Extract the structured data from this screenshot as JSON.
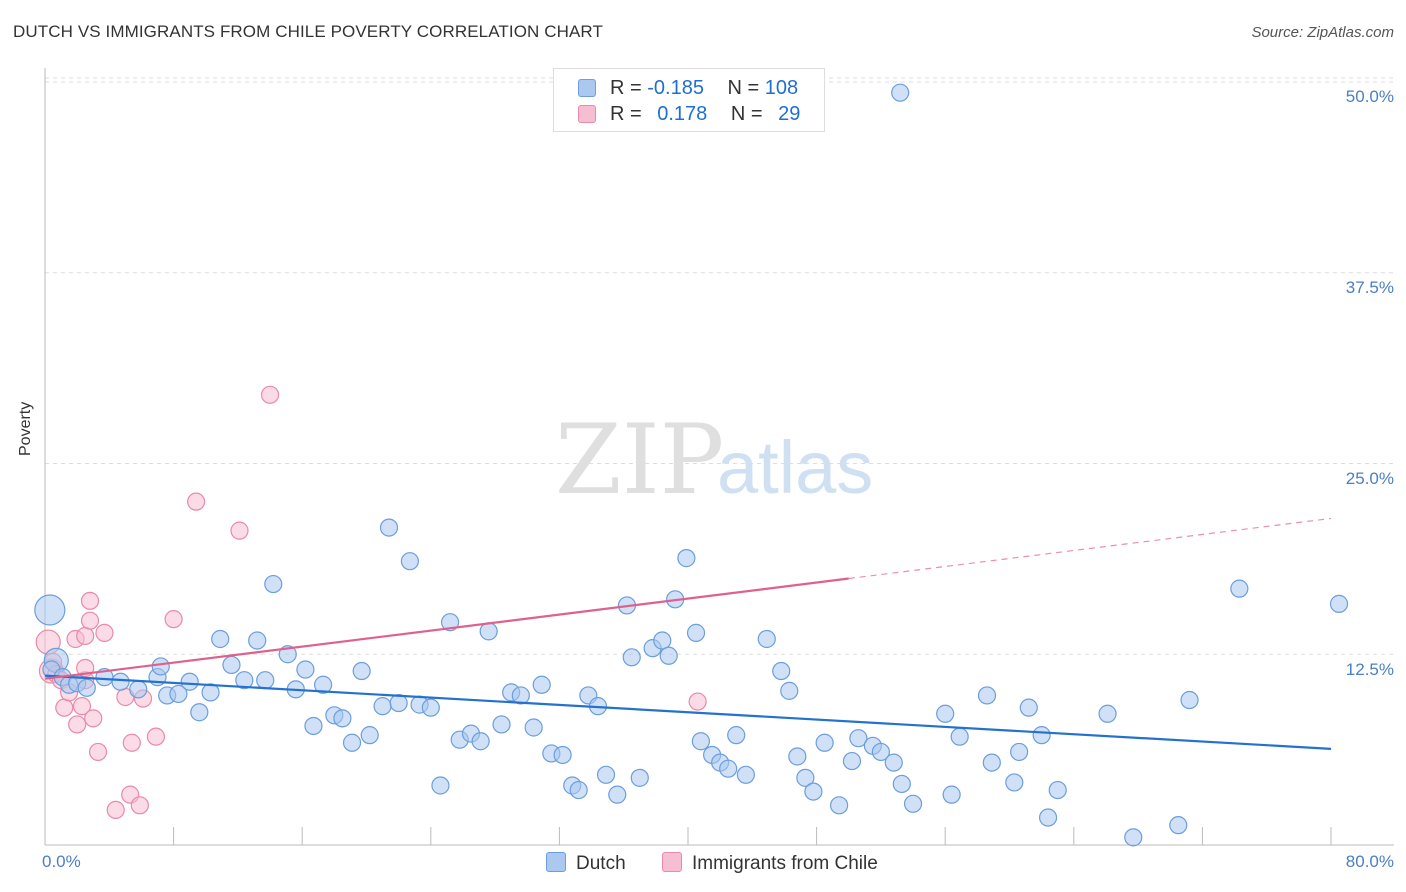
{
  "title": "DUTCH VS IMMIGRANTS FROM CHILE POVERTY CORRELATION CHART",
  "source": "Source: ZipAtlas.com",
  "watermark": {
    "zip": "ZIP",
    "atlas": "atlas"
  },
  "legend": {
    "rows": [
      {
        "r_label": "R = ",
        "r_value": "-0.185",
        "n_label": "N = ",
        "n_value": "108"
      },
      {
        "r_label": "R = ",
        "r_value": "0.178",
        "n_label": "N = ",
        "n_value": "29"
      }
    ]
  },
  "bottom_legend": {
    "series1": "Dutch",
    "series2": "Immigrants from Chile"
  },
  "colors": {
    "dutch_fill": "#aac8f0",
    "dutch_stroke": "#6b9edb",
    "dutch_line": "#2471d0",
    "chile_fill": "#f7bdd0",
    "chile_stroke": "#e98aa8",
    "chile_line": "#e0608d",
    "axis_text": "#4a7fc6",
    "grid": "#dddddd"
  },
  "chart_data": {
    "type": "scatter",
    "title": "DUTCH VS IMMIGRANTS FROM CHILE POVERTY CORRELATION CHART",
    "xlabel": "",
    "ylabel": "Poverty",
    "xlim": [
      0,
      80
    ],
    "ylim": [
      0,
      50
    ],
    "x_tick_labels": [
      "0.0%",
      "80.0%"
    ],
    "y_ticks": [
      {
        "value": 12.5,
        "label": "12.5%"
      },
      {
        "value": 25.0,
        "label": "25.0%"
      },
      {
        "value": 37.5,
        "label": "37.5%"
      },
      {
        "value": 50.0,
        "label": "50.0%"
      }
    ],
    "series": [
      {
        "name": "Dutch",
        "R": -0.185,
        "N": 108,
        "trend": {
          "x0": 0,
          "y0": 11.1,
          "x1": 80,
          "y1": 6.3,
          "dashed_from": null
        },
        "points": [
          [
            0.3,
            15.4,
            3
          ],
          [
            0.7,
            12.1,
            2
          ],
          [
            0.4,
            11.5,
            1
          ],
          [
            1.1,
            11.0,
            1
          ],
          [
            1.5,
            10.5,
            1
          ],
          [
            2.0,
            10.6,
            1
          ],
          [
            2.6,
            10.3,
            1
          ],
          [
            3.7,
            11.0,
            1
          ],
          [
            4.7,
            10.7,
            1
          ],
          [
            5.8,
            10.2,
            1
          ],
          [
            7.0,
            11.0,
            1
          ],
          [
            7.6,
            9.8,
            1
          ],
          [
            7.2,
            11.7,
            1
          ],
          [
            8.3,
            9.9,
            1
          ],
          [
            9.0,
            10.7,
            1
          ],
          [
            9.6,
            8.7,
            1
          ],
          [
            10.3,
            10.0,
            1
          ],
          [
            10.9,
            13.5,
            1
          ],
          [
            11.6,
            11.8,
            1
          ],
          [
            12.4,
            10.8,
            1
          ],
          [
            13.2,
            13.4,
            1
          ],
          [
            13.7,
            10.8,
            1
          ],
          [
            14.2,
            17.1,
            1
          ],
          [
            15.1,
            12.5,
            1
          ],
          [
            15.6,
            10.2,
            1
          ],
          [
            16.2,
            11.5,
            1
          ],
          [
            16.7,
            7.8,
            1
          ],
          [
            17.3,
            10.5,
            1
          ],
          [
            18.0,
            8.5,
            1
          ],
          [
            18.5,
            8.3,
            1
          ],
          [
            19.1,
            6.7,
            1
          ],
          [
            19.7,
            11.4,
            1
          ],
          [
            20.2,
            7.2,
            1
          ],
          [
            21.0,
            9.1,
            1
          ],
          [
            21.4,
            20.8,
            1
          ],
          [
            22.0,
            9.3,
            1
          ],
          [
            22.7,
            18.6,
            1
          ],
          [
            23.3,
            9.2,
            1
          ],
          [
            24.0,
            9.0,
            1
          ],
          [
            24.6,
            3.9,
            1
          ],
          [
            25.2,
            14.6,
            1
          ],
          [
            25.8,
            6.9,
            1
          ],
          [
            26.5,
            7.3,
            1
          ],
          [
            27.1,
            6.8,
            1
          ],
          [
            27.6,
            14.0,
            1
          ],
          [
            28.4,
            7.9,
            1
          ],
          [
            29.0,
            10.0,
            1
          ],
          [
            29.6,
            9.8,
            1
          ],
          [
            30.4,
            7.7,
            1
          ],
          [
            30.9,
            10.5,
            1
          ],
          [
            31.5,
            6.0,
            1
          ],
          [
            32.2,
            5.9,
            1
          ],
          [
            32.8,
            3.9,
            1
          ],
          [
            33.2,
            3.6,
            1
          ],
          [
            33.8,
            9.8,
            1
          ],
          [
            34.4,
            9.1,
            1
          ],
          [
            34.9,
            4.6,
            1
          ],
          [
            35.6,
            3.3,
            1
          ],
          [
            36.2,
            15.7,
            1
          ],
          [
            36.5,
            12.3,
            1
          ],
          [
            37.0,
            4.4,
            1
          ],
          [
            37.8,
            12.9,
            1
          ],
          [
            38.4,
            13.4,
            1
          ],
          [
            38.8,
            12.4,
            1
          ],
          [
            39.2,
            16.1,
            1
          ],
          [
            39.9,
            18.8,
            1
          ],
          [
            40.5,
            13.9,
            1
          ],
          [
            40.8,
            6.8,
            1
          ],
          [
            41.5,
            5.9,
            1
          ],
          [
            42.0,
            5.4,
            1
          ],
          [
            42.5,
            5.0,
            1
          ],
          [
            43.0,
            7.2,
            1
          ],
          [
            43.6,
            4.6,
            1
          ],
          [
            44.9,
            13.5,
            1
          ],
          [
            45.8,
            11.4,
            1
          ],
          [
            46.3,
            10.1,
            1
          ],
          [
            46.8,
            5.8,
            1
          ],
          [
            47.3,
            4.4,
            1
          ],
          [
            47.8,
            3.5,
            1
          ],
          [
            48.5,
            6.7,
            1
          ],
          [
            49.4,
            2.6,
            1
          ],
          [
            50.2,
            5.5,
            1
          ],
          [
            50.6,
            7.0,
            1
          ],
          [
            51.5,
            6.5,
            1
          ],
          [
            52.0,
            6.1,
            1
          ],
          [
            52.8,
            5.4,
            1
          ],
          [
            53.3,
            4.0,
            1
          ],
          [
            54.0,
            2.7,
            1
          ],
          [
            56.0,
            8.6,
            1
          ],
          [
            56.4,
            3.3,
            1
          ],
          [
            56.9,
            7.1,
            1
          ],
          [
            58.6,
            9.8,
            1
          ],
          [
            58.9,
            5.4,
            1
          ],
          [
            60.3,
            4.1,
            1
          ],
          [
            60.6,
            6.1,
            1
          ],
          [
            61.2,
            9.0,
            1
          ],
          [
            62.0,
            7.2,
            1
          ],
          [
            62.4,
            1.8,
            1
          ],
          [
            63.0,
            3.6,
            1
          ],
          [
            53.2,
            49.3,
            1
          ],
          [
            66.1,
            8.6,
            1
          ],
          [
            67.7,
            0.5,
            1
          ],
          [
            70.5,
            1.3,
            1
          ],
          [
            71.2,
            9.5,
            1
          ],
          [
            74.3,
            16.8,
            1
          ],
          [
            80.5,
            15.8,
            1
          ]
        ]
      },
      {
        "name": "Immigrants from Chile",
        "R": 0.178,
        "N": 29,
        "trend": {
          "x0": 0,
          "y0": 10.9,
          "x1": 80,
          "y1": 21.4,
          "dashed_from": 50
        },
        "points": [
          [
            0.2,
            13.3,
            2
          ],
          [
            0.4,
            11.4,
            2
          ],
          [
            0.5,
            12.0,
            1
          ],
          [
            0.7,
            11.2,
            1
          ],
          [
            1.0,
            10.8,
            1
          ],
          [
            1.2,
            9.0,
            1
          ],
          [
            1.5,
            10.0,
            1
          ],
          [
            1.9,
            13.5,
            1
          ],
          [
            2.0,
            7.9,
            1
          ],
          [
            2.3,
            9.1,
            1
          ],
          [
            2.5,
            10.8,
            1
          ],
          [
            2.5,
            13.7,
            1
          ],
          [
            2.5,
            11.6,
            1
          ],
          [
            2.8,
            14.7,
            1
          ],
          [
            2.8,
            16.0,
            1
          ],
          [
            3.0,
            8.3,
            1
          ],
          [
            3.3,
            6.1,
            1
          ],
          [
            3.7,
            13.9,
            1
          ],
          [
            4.4,
            2.3,
            1
          ],
          [
            5.0,
            9.7,
            1
          ],
          [
            5.3,
            3.3,
            1
          ],
          [
            5.4,
            6.7,
            1
          ],
          [
            5.9,
            2.6,
            1
          ],
          [
            6.1,
            9.6,
            1
          ],
          [
            6.9,
            7.1,
            1
          ],
          [
            8.0,
            14.8,
            1
          ],
          [
            9.4,
            22.5,
            1
          ],
          [
            12.1,
            20.6,
            1
          ],
          [
            14.0,
            29.5,
            1
          ],
          [
            40.6,
            9.4,
            1
          ]
        ]
      }
    ]
  }
}
